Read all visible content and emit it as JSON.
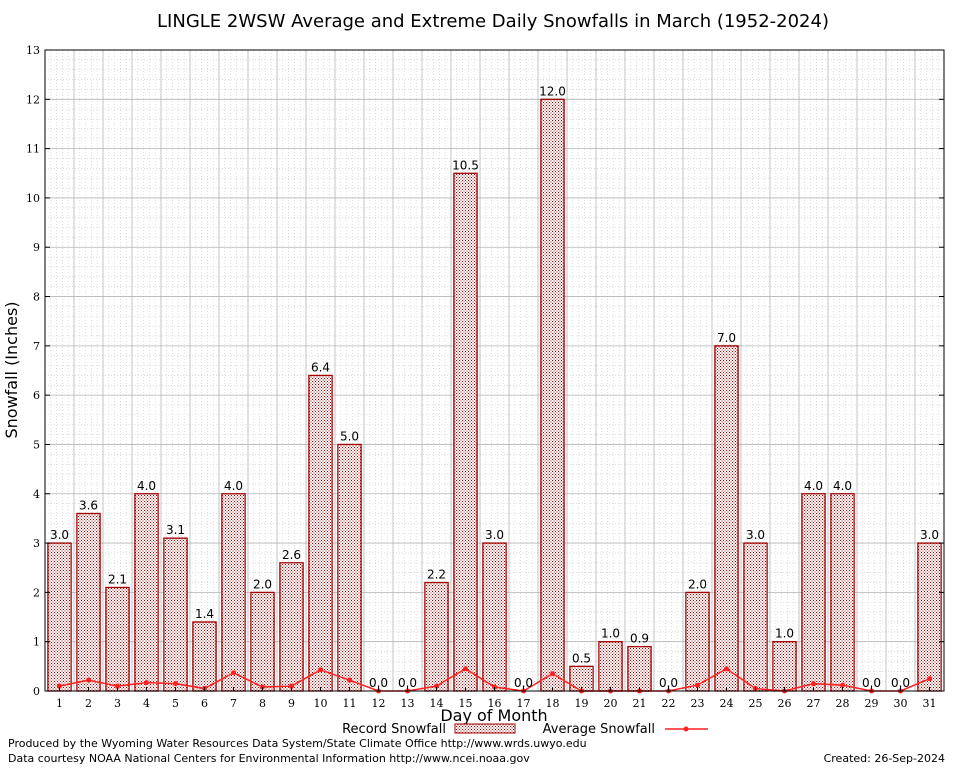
{
  "chart_data": {
    "type": "bar",
    "title": "LINGLE 2WSW Average and Extreme Daily Snowfalls in March (1952-2024)",
    "xlabel": "Day of Month",
    "ylabel": "Snowfall (Inches)",
    "ylim": [
      0,
      13
    ],
    "yticks": [
      "0",
      "1",
      "2",
      "3",
      "4",
      "5",
      "6",
      "7",
      "8",
      "9",
      "10",
      "11",
      "12",
      "13"
    ],
    "categories": [
      "1",
      "2",
      "3",
      "4",
      "5",
      "6",
      "7",
      "8",
      "9",
      "10",
      "11",
      "12",
      "13",
      "14",
      "15",
      "16",
      "17",
      "18",
      "19",
      "20",
      "21",
      "22",
      "23",
      "24",
      "25",
      "26",
      "27",
      "28",
      "29",
      "30",
      "31"
    ],
    "grid": true,
    "series": [
      {
        "name": "Record Snowfall",
        "type": "bar",
        "color": "#a00000",
        "values": [
          3.0,
          3.6,
          2.1,
          4.0,
          3.1,
          1.4,
          4.0,
          2.0,
          2.6,
          6.4,
          5.0,
          0.0,
          0.0,
          2.2,
          10.5,
          3.0,
          0.0,
          12.0,
          0.5,
          1.0,
          0.9,
          0.0,
          2.0,
          7.0,
          3.0,
          1.0,
          4.0,
          4.0,
          0.0,
          0.0,
          3.0
        ],
        "labels": [
          "3.0",
          "3.6",
          "2.1",
          "4.0",
          "3.1",
          "1.4",
          "4.0",
          "2.0",
          "2.6",
          "6.4",
          "5.0",
          "0.0",
          "0.0",
          "2.2",
          "10.5",
          "3.0",
          "0.0",
          "12.0",
          "0.5",
          "1.0",
          "0.9",
          "0.0",
          "2.0",
          "7.0",
          "3.0",
          "1.0",
          "4.0",
          "4.0",
          "0.0",
          "0.0",
          "3.0"
        ]
      },
      {
        "name": "Average Snowfall",
        "type": "line",
        "color": "#ff2020",
        "values": [
          0.1,
          0.22,
          0.1,
          0.17,
          0.15,
          0.05,
          0.37,
          0.08,
          0.1,
          0.43,
          0.22,
          0.0,
          0.0,
          0.1,
          0.45,
          0.08,
          0.0,
          0.35,
          0.0,
          0.0,
          0.0,
          0.0,
          0.12,
          0.45,
          0.05,
          0.0,
          0.15,
          0.12,
          0.0,
          0.0,
          0.25
        ]
      }
    ]
  },
  "footer": {
    "produced_by": "Produced by the Wyoming Water Resources Data System/State Climate Office http://www.wrds.uwyo.edu",
    "courtesy": "Data courtesy NOAA National Centers for Environmental Information http://www.ncei.noaa.gov",
    "created": "Created:  26-Sep-2024"
  }
}
